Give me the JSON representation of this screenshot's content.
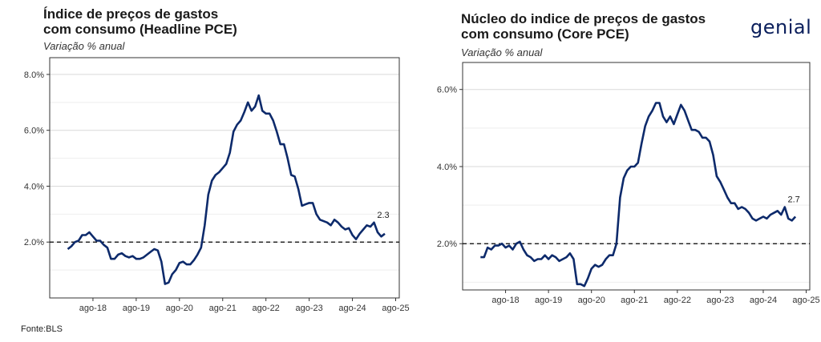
{
  "brand": {
    "logo_text": "genial",
    "accent": "#1e9de0",
    "logo_color": "#0b1f5c"
  },
  "source": "Fonte:BLS",
  "colors": {
    "line": "#0d2a6b",
    "reference": "#000000",
    "grid": "#d9d9d9"
  },
  "chart_data": [
    {
      "type": "line",
      "title_line1": "Índice de preços de gastos",
      "title_line2": "com consumo (Headline PCE)",
      "subtitle": "Variação % anual",
      "x_tick_labels": [
        "ago-18",
        "ago-19",
        "ago-20",
        "ago-21",
        "ago-22",
        "ago-23",
        "ago-24",
        "ago-25"
      ],
      "y_tick_labels": [
        "2.0%",
        "4.0%",
        "6.0%",
        "8.0%"
      ],
      "y_ticks": [
        2,
        4,
        6,
        8
      ],
      "ylim": [
        0.0,
        8.6
      ],
      "xlim": [
        "2017-08",
        "2025-09"
      ],
      "reference_line": 2.0,
      "last_label": "2.3",
      "grid": "horizontal",
      "series": [
        {
          "x": [
            "2018-01",
            "2018-02",
            "2018-03",
            "2018-04",
            "2018-05",
            "2018-06",
            "2018-07",
            "2018-08",
            "2018-09",
            "2018-10",
            "2018-11",
            "2018-12",
            "2019-01",
            "2019-02",
            "2019-03",
            "2019-04",
            "2019-05",
            "2019-06",
            "2019-07",
            "2019-08",
            "2019-09",
            "2019-10",
            "2019-11",
            "2019-12",
            "2020-01",
            "2020-02",
            "2020-03",
            "2020-04",
            "2020-05",
            "2020-06",
            "2020-07",
            "2020-08",
            "2020-09",
            "2020-10",
            "2020-11",
            "2020-12",
            "2021-01",
            "2021-02",
            "2021-03",
            "2021-04",
            "2021-05",
            "2021-06",
            "2021-07",
            "2021-08",
            "2021-09",
            "2021-10",
            "2021-11",
            "2021-12",
            "2022-01",
            "2022-02",
            "2022-03",
            "2022-04",
            "2022-05",
            "2022-06",
            "2022-07",
            "2022-08",
            "2022-09",
            "2022-10",
            "2022-11",
            "2022-12",
            "2023-01",
            "2023-02",
            "2023-03",
            "2023-04",
            "2023-05",
            "2023-06",
            "2023-07",
            "2023-08",
            "2023-09",
            "2023-10",
            "2023-11",
            "2023-12",
            "2024-01",
            "2024-02",
            "2024-03",
            "2024-04",
            "2024-05",
            "2024-06",
            "2024-07",
            "2024-08",
            "2024-09",
            "2024-10",
            "2024-11",
            "2024-12",
            "2025-01",
            "2025-02",
            "2025-03",
            "2025-04",
            "2025-05"
          ],
          "values": [
            1.75,
            1.85,
            2.0,
            2.05,
            2.25,
            2.25,
            2.35,
            2.2,
            2.05,
            2.05,
            1.9,
            1.8,
            1.4,
            1.4,
            1.55,
            1.6,
            1.5,
            1.45,
            1.5,
            1.4,
            1.4,
            1.45,
            1.55,
            1.65,
            1.75,
            1.7,
            1.3,
            0.5,
            0.55,
            0.85,
            1.0,
            1.25,
            1.3,
            1.2,
            1.2,
            1.35,
            1.55,
            1.8,
            2.6,
            3.7,
            4.2,
            4.4,
            4.5,
            4.65,
            4.8,
            5.2,
            5.95,
            6.2,
            6.35,
            6.65,
            7.0,
            6.7,
            6.85,
            7.25,
            6.7,
            6.6,
            6.6,
            6.35,
            5.95,
            5.5,
            5.5,
            5.0,
            4.4,
            4.35,
            3.9,
            3.3,
            3.35,
            3.4,
            3.4,
            3.0,
            2.8,
            2.75,
            2.7,
            2.6,
            2.8,
            2.7,
            2.55,
            2.45,
            2.5,
            2.25,
            2.1,
            2.3,
            2.45,
            2.6,
            2.55,
            2.7,
            2.35,
            2.2,
            2.3
          ]
        }
      ]
    },
    {
      "type": "line",
      "title_line1": "Núcleo do indice de preços de gastos",
      "title_line2": "com consumo (Core PCE)",
      "subtitle": "Variação % anual",
      "x_tick_labels": [
        "ago-18",
        "ago-19",
        "ago-20",
        "ago-21",
        "ago-22",
        "ago-23",
        "ago-24",
        "ago-25"
      ],
      "y_tick_labels": [
        "2.0%",
        "4.0%",
        "6.0%"
      ],
      "y_ticks": [
        2,
        4,
        6
      ],
      "ylim": [
        0.8,
        6.7
      ],
      "xlim": [
        "2017-08",
        "2025-09"
      ],
      "reference_line": 2.0,
      "last_label": "2.7",
      "grid": "horizontal",
      "series": [
        {
          "x": [
            "2018-01",
            "2018-02",
            "2018-03",
            "2018-04",
            "2018-05",
            "2018-06",
            "2018-07",
            "2018-08",
            "2018-09",
            "2018-10",
            "2018-11",
            "2018-12",
            "2019-01",
            "2019-02",
            "2019-03",
            "2019-04",
            "2019-05",
            "2019-06",
            "2019-07",
            "2019-08",
            "2019-09",
            "2019-10",
            "2019-11",
            "2019-12",
            "2020-01",
            "2020-02",
            "2020-03",
            "2020-04",
            "2020-05",
            "2020-06",
            "2020-07",
            "2020-08",
            "2020-09",
            "2020-10",
            "2020-11",
            "2020-12",
            "2021-01",
            "2021-02",
            "2021-03",
            "2021-04",
            "2021-05",
            "2021-06",
            "2021-07",
            "2021-08",
            "2021-09",
            "2021-10",
            "2021-11",
            "2021-12",
            "2022-01",
            "2022-02",
            "2022-03",
            "2022-04",
            "2022-05",
            "2022-06",
            "2022-07",
            "2022-08",
            "2022-09",
            "2022-10",
            "2022-11",
            "2022-12",
            "2023-01",
            "2023-02",
            "2023-03",
            "2023-04",
            "2023-05",
            "2023-06",
            "2023-07",
            "2023-08",
            "2023-09",
            "2023-10",
            "2023-11",
            "2023-12",
            "2024-01",
            "2024-02",
            "2024-03",
            "2024-04",
            "2024-05",
            "2024-06",
            "2024-07",
            "2024-08",
            "2024-09",
            "2024-10",
            "2024-11",
            "2024-12",
            "2025-01",
            "2025-02",
            "2025-03",
            "2025-04",
            "2025-05"
          ],
          "values": [
            1.65,
            1.65,
            1.9,
            1.85,
            1.95,
            1.95,
            2.0,
            1.9,
            1.95,
            1.85,
            2.0,
            2.05,
            1.85,
            1.7,
            1.65,
            1.55,
            1.6,
            1.6,
            1.7,
            1.6,
            1.7,
            1.65,
            1.55,
            1.6,
            1.65,
            1.75,
            1.6,
            0.95,
            0.95,
            0.9,
            1.1,
            1.35,
            1.45,
            1.4,
            1.45,
            1.6,
            1.7,
            1.7,
            2.0,
            3.2,
            3.7,
            3.9,
            4.0,
            4.0,
            4.1,
            4.6,
            5.05,
            5.3,
            5.45,
            5.65,
            5.65,
            5.3,
            5.15,
            5.3,
            5.1,
            5.35,
            5.6,
            5.45,
            5.2,
            4.95,
            4.95,
            4.9,
            4.75,
            4.75,
            4.65,
            4.3,
            3.75,
            3.6,
            3.4,
            3.2,
            3.05,
            3.05,
            2.9,
            2.95,
            2.9,
            2.8,
            2.65,
            2.6,
            2.65,
            2.7,
            2.65,
            2.75,
            2.8,
            2.85,
            2.75,
            2.95,
            2.65,
            2.6,
            2.7
          ]
        }
      ]
    }
  ]
}
